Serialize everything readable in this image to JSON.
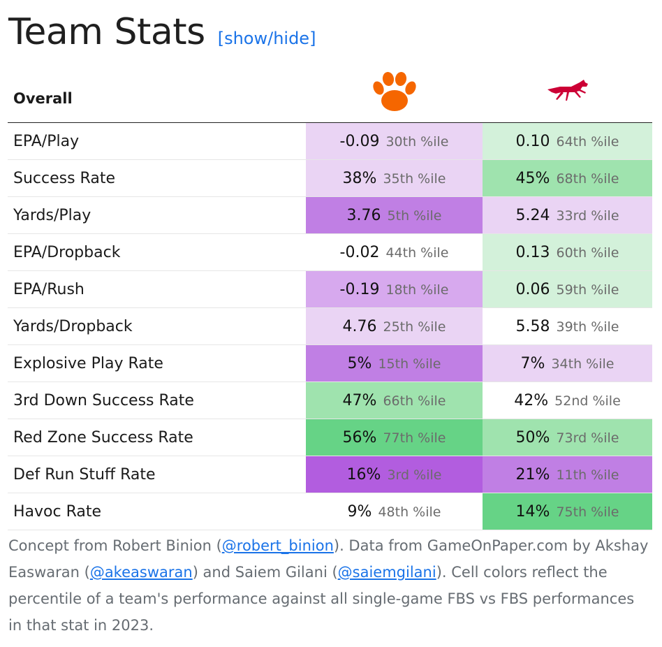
{
  "header": {
    "title": "Team Stats",
    "toggle_label": "[show/hide]"
  },
  "table": {
    "section_label": "Overall",
    "team_a": {
      "logo": "clemson-paw-logo",
      "color": "#F56600"
    },
    "team_b": {
      "logo": "smu-mustang-logo",
      "color": "#CC0035"
    },
    "rows": [
      {
        "label": "EPA/Play",
        "a": {
          "value": "-0.09",
          "pct": "30th %ile",
          "bg": "#ead4f4"
        },
        "b": {
          "value": "0.10",
          "pct": "64th %ile",
          "bg": "#d3f1da"
        }
      },
      {
        "label": "Success Rate",
        "a": {
          "value": "38%",
          "pct": "35th %ile",
          "bg": "#ead4f4"
        },
        "b": {
          "value": "45%",
          "pct": "68th %ile",
          "bg": "#9fe3ae"
        }
      },
      {
        "label": "Yards/Play",
        "a": {
          "value": "3.76",
          "pct": "5th %ile",
          "bg": "#c07fe4"
        },
        "b": {
          "value": "5.24",
          "pct": "33rd %ile",
          "bg": "#ead4f4"
        }
      },
      {
        "label": "EPA/Dropback",
        "a": {
          "value": "-0.02",
          "pct": "44th %ile",
          "bg": "#ffffff"
        },
        "b": {
          "value": "0.13",
          "pct": "60th %ile",
          "bg": "#d3f1da"
        }
      },
      {
        "label": "EPA/Rush",
        "a": {
          "value": "-0.19",
          "pct": "18th %ile",
          "bg": "#d7a9ee"
        },
        "b": {
          "value": "0.06",
          "pct": "59th %ile",
          "bg": "#d3f1da"
        }
      },
      {
        "label": "Yards/Dropback",
        "a": {
          "value": "4.76",
          "pct": "25th %ile",
          "bg": "#ead4f4"
        },
        "b": {
          "value": "5.58",
          "pct": "39th %ile",
          "bg": "#ffffff"
        }
      },
      {
        "label": "Explosive Play Rate",
        "a": {
          "value": "5%",
          "pct": "15th %ile",
          "bg": "#c07fe4"
        },
        "b": {
          "value": "7%",
          "pct": "34th %ile",
          "bg": "#ead4f4"
        }
      },
      {
        "label": "3rd Down Success Rate",
        "a": {
          "value": "47%",
          "pct": "66th %ile",
          "bg": "#9fe3ae"
        },
        "b": {
          "value": "42%",
          "pct": "52nd %ile",
          "bg": "#ffffff"
        }
      },
      {
        "label": "Red Zone Success Rate",
        "a": {
          "value": "56%",
          "pct": "77th %ile",
          "bg": "#66d386"
        },
        "b": {
          "value": "50%",
          "pct": "73rd %ile",
          "bg": "#9fe3ae"
        }
      },
      {
        "label": "Def Run Stuff Rate",
        "a": {
          "value": "16%",
          "pct": "3rd %ile",
          "bg": "#b25ddf"
        },
        "b": {
          "value": "21%",
          "pct": "11th %ile",
          "bg": "#c07fe4"
        }
      },
      {
        "label": "Havoc Rate",
        "a": {
          "value": "9%",
          "pct": "48th %ile",
          "bg": "#ffffff"
        },
        "b": {
          "value": "14%",
          "pct": "75th %ile",
          "bg": "#66d386"
        }
      }
    ]
  },
  "footnote": {
    "t1": "Concept from Robert Binion (",
    "l1": "@robert_binion",
    "t2": "). Data from GameOnPaper.com by Akshay Easwaran (",
    "l2": "@akeaswaran",
    "t3": ") and Saiem Gilani (",
    "l3": "@saiemgilani",
    "t4": "). Cell colors reflect the percentile of a team's performance against all single-game FBS vs FBS performances in that stat in 2023."
  }
}
